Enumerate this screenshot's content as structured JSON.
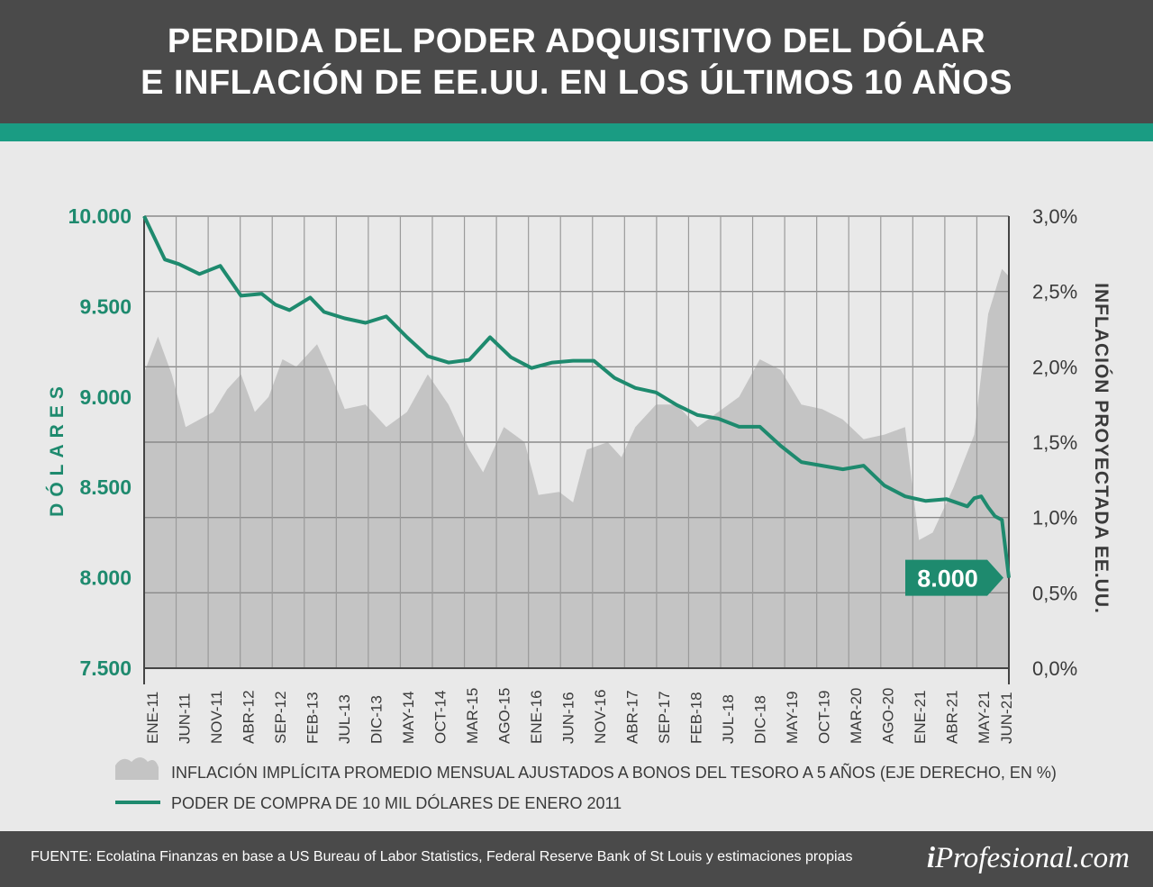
{
  "header": {
    "title_line1": "PERDIDA DEL PODER ADQUISITIVO DEL DÓLAR",
    "title_line2": "E INFLACIÓN DE EE.UU. EN LOS ÚLTIMOS 10 AÑOS"
  },
  "colors": {
    "header_bg": "#4a4a4a",
    "accent_teal": "#1a9c83",
    "line_green": "#1e8a6e",
    "area_gray": "#c4c4c4",
    "background": "#e9e9e9"
  },
  "chart_data": {
    "type": "line+area",
    "categories": [
      "ENE-11",
      "JUN-11",
      "NOV-11",
      "ABR-12",
      "SEP-12",
      "FEB-13",
      "JUL-13",
      "DIC-13",
      "MAY-14",
      "OCT-14",
      "MAR-15",
      "AGO-15",
      "ENE-16",
      "JUN-16",
      "NOV-16",
      "ABR-17",
      "SEP-17",
      "FEB-18",
      "JUL-18",
      "DIC-18",
      "MAY-19",
      "OCT-19",
      "MAR-20",
      "AGO-20",
      "ENE-21",
      "ABR-21",
      "MAY-21",
      "JUN-21"
    ],
    "x_start": "2011-01",
    "x_end": "2021-06",
    "y_left": {
      "label": "DÓLARES",
      "ticks": [
        "10.000",
        "9.500",
        "9.000",
        "8.500",
        "8.000",
        "7.500"
      ],
      "range": [
        7500,
        10000
      ]
    },
    "y_right": {
      "label": "INFLACIÓN PROYECTADA  EE.UU.",
      "ticks": [
        "3,0%",
        "2,5%",
        "2,0%",
        "1,5%",
        "1,0%",
        "0,5%",
        "0,0%"
      ],
      "range": [
        0,
        3.0
      ]
    },
    "grid": true,
    "legend_position": "bottom",
    "series": [
      {
        "name": "PODER DE COMPRA DE 10 MIL DÓLARES DE ENERO 2011",
        "kind": "line",
        "axis": "left",
        "points": [
          [
            "2011-01",
            10000
          ],
          [
            "2011-04",
            9760
          ],
          [
            "2011-06",
            9735
          ],
          [
            "2011-09",
            9680
          ],
          [
            "2011-12",
            9725
          ],
          [
            "2012-03",
            9560
          ],
          [
            "2012-06",
            9570
          ],
          [
            "2012-08",
            9510
          ],
          [
            "2012-10",
            9480
          ],
          [
            "2013-01",
            9550
          ],
          [
            "2013-03",
            9470
          ],
          [
            "2013-06",
            9435
          ],
          [
            "2013-09",
            9410
          ],
          [
            "2013-12",
            9445
          ],
          [
            "2014-03",
            9330
          ],
          [
            "2014-06",
            9225
          ],
          [
            "2014-09",
            9190
          ],
          [
            "2014-12",
            9205
          ],
          [
            "2015-03",
            9330
          ],
          [
            "2015-06",
            9220
          ],
          [
            "2015-09",
            9160
          ],
          [
            "2015-12",
            9190
          ],
          [
            "2016-03",
            9200
          ],
          [
            "2016-06",
            9200
          ],
          [
            "2016-09",
            9105
          ],
          [
            "2016-12",
            9050
          ],
          [
            "2017-03",
            9025
          ],
          [
            "2017-06",
            8955
          ],
          [
            "2017-09",
            8900
          ],
          [
            "2017-12",
            8880
          ],
          [
            "2018-03",
            8835
          ],
          [
            "2018-06",
            8835
          ],
          [
            "2018-09",
            8730
          ],
          [
            "2018-12",
            8640
          ],
          [
            "2019-03",
            8620
          ],
          [
            "2019-06",
            8600
          ],
          [
            "2019-09",
            8620
          ],
          [
            "2019-12",
            8510
          ],
          [
            "2020-03",
            8450
          ],
          [
            "2020-06",
            8425
          ],
          [
            "2020-09",
            8435
          ],
          [
            "2020-12",
            8395
          ],
          [
            "2021-01",
            8440
          ],
          [
            "2021-02",
            8450
          ],
          [
            "2021-03",
            8390
          ],
          [
            "2021-04",
            8340
          ],
          [
            "2021-05",
            8320
          ],
          [
            "2021-06",
            8000
          ]
        ],
        "end_label": "8.000"
      },
      {
        "name": "INFLACIÓN IMPLÍCITA PROMEDIO MENSUAL AJUSTADOS A BONOS DEL TESORO A 5 AÑOS (EJE DERECHO, EN %)",
        "kind": "area",
        "axis": "right",
        "points": [
          [
            "2011-01",
            1.96
          ],
          [
            "2011-03",
            2.2
          ],
          [
            "2011-05",
            1.95
          ],
          [
            "2011-07",
            1.6
          ],
          [
            "2011-09",
            1.65
          ],
          [
            "2011-11",
            1.7
          ],
          [
            "2012-01",
            1.85
          ],
          [
            "2012-03",
            1.95
          ],
          [
            "2012-05",
            1.7
          ],
          [
            "2012-07",
            1.8
          ],
          [
            "2012-09",
            2.05
          ],
          [
            "2012-11",
            2.0
          ],
          [
            "2013-02",
            2.15
          ],
          [
            "2013-04",
            1.95
          ],
          [
            "2013-06",
            1.72
          ],
          [
            "2013-09",
            1.75
          ],
          [
            "2013-12",
            1.6
          ],
          [
            "2014-03",
            1.7
          ],
          [
            "2014-06",
            1.95
          ],
          [
            "2014-09",
            1.75
          ],
          [
            "2014-12",
            1.45
          ],
          [
            "2015-02",
            1.3
          ],
          [
            "2015-05",
            1.6
          ],
          [
            "2015-08",
            1.5
          ],
          [
            "2015-10",
            1.15
          ],
          [
            "2016-01",
            1.17
          ],
          [
            "2016-03",
            1.1
          ],
          [
            "2016-05",
            1.45
          ],
          [
            "2016-08",
            1.5
          ],
          [
            "2016-10",
            1.4
          ],
          [
            "2016-12",
            1.6
          ],
          [
            "2017-03",
            1.75
          ],
          [
            "2017-06",
            1.75
          ],
          [
            "2017-09",
            1.6
          ],
          [
            "2017-12",
            1.7
          ],
          [
            "2018-03",
            1.8
          ],
          [
            "2018-06",
            2.05
          ],
          [
            "2018-09",
            1.98
          ],
          [
            "2018-12",
            1.75
          ],
          [
            "2019-03",
            1.72
          ],
          [
            "2019-06",
            1.65
          ],
          [
            "2019-09",
            1.52
          ],
          [
            "2019-12",
            1.55
          ],
          [
            "2020-03",
            1.6
          ],
          [
            "2020-05",
            0.85
          ],
          [
            "2020-07",
            0.9
          ],
          [
            "2020-10",
            1.2
          ],
          [
            "2021-01",
            1.55
          ],
          [
            "2021-03",
            2.35
          ],
          [
            "2021-05",
            2.65
          ],
          [
            "2021-06",
            2.6
          ]
        ]
      }
    ]
  },
  "footer": {
    "source": "FUENTE: Ecolatina Finanzas en base a US Bureau of Labor Statistics, Federal Reserve Bank of St Louis y estimaciones propias",
    "brand_i": "i",
    "brand_rest": "Profesional.com"
  }
}
